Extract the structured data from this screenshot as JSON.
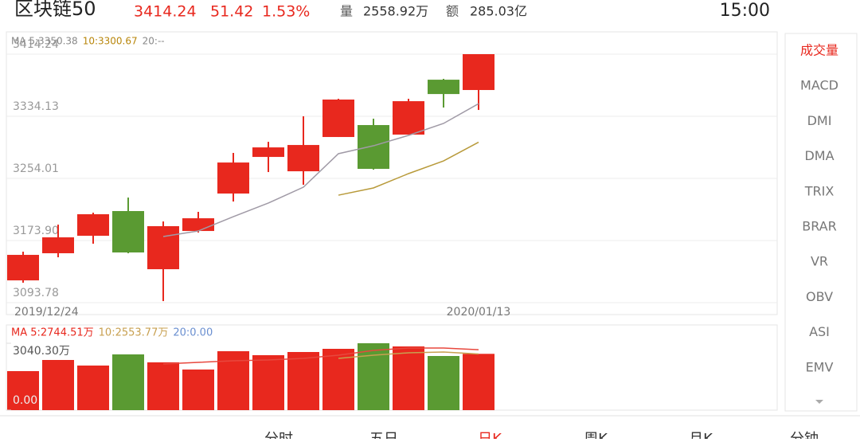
{
  "header": {
    "name": "区块链50",
    "price": "3414.24",
    "change": "51.42",
    "change_pct": "1.53%",
    "volume_label": "量",
    "volume": "2558.92万",
    "amount_label": "额",
    "amount": "285.03亿",
    "time": "15:00"
  },
  "price_chart": {
    "legend": [
      "MA 5:3350.38",
      "10:3300.67",
      "20:--"
    ],
    "legend_colors": [
      "#888888",
      "#b8860b",
      "#888888"
    ],
    "ylim": [
      3078.4,
      3443.0
    ],
    "yticks": [
      3414.24,
      3334.13,
      3254.01,
      {
        "value": 3173.9,
        "label": "3173.90"
      },
      3093.78
    ],
    "date_labels": [
      "2019/12/24",
      "2020/01/13"
    ],
    "up_color": "#e8281e",
    "down_color": "#5a9a32",
    "candles": [
      {
        "open": 3122.5,
        "close": 3155.4,
        "high": 3159.5,
        "low": 3119.5
      },
      {
        "open": 3157.5,
        "close": 3178.0,
        "high": 3194.4,
        "low": 3152.3
      },
      {
        "open": 3180.0,
        "close": 3207.8,
        "high": 3209.8,
        "low": 3169.8
      },
      {
        "open": 3211.9,
        "close": 3158.5,
        "high": 3229.3,
        "low": 3157.5
      },
      {
        "open": 3136.9,
        "close": 3192.4,
        "high": 3198.5,
        "low": 3095.8
      },
      {
        "open": 3186.2,
        "close": 3202.6,
        "high": 3210.9,
        "low": 3184.2
      },
      {
        "open": 3234.5,
        "close": 3274.5,
        "high": 3286.9,
        "low": 3224.2
      },
      {
        "open": 3281.7,
        "close": 3294.0,
        "high": 3301.2,
        "low": 3262.2
      },
      {
        "open": 3263.2,
        "close": 3297.1,
        "high": 3334.1,
        "low": 3245.8
      },
      {
        "open": 3307.4,
        "close": 3355.7,
        "high": 3356.7,
        "low": 3307.4
      },
      {
        "open": 3322.8,
        "close": 3266.3,
        "high": 3331.0,
        "low": 3265.3
      },
      {
        "open": 3310.5,
        "close": 3353.6,
        "high": 3356.7,
        "low": 3310.5
      },
      {
        "open": 3381.3,
        "close": 3362.8,
        "high": 3382.4,
        "low": 3345.4
      },
      {
        "open": 3368.0,
        "close": 3414.24,
        "high": 3414.24,
        "low": 3342.3
      }
    ],
    "ma5": [
      null,
      null,
      null,
      null,
      3179.0,
      3186.2,
      3204.7,
      3222.2,
      3242.7,
      3285.9,
      3296.1,
      3309.5,
      3324.9,
      3350.38
    ],
    "ma10": [
      null,
      null,
      null,
      null,
      null,
      null,
      null,
      null,
      null,
      3232.4,
      3241.7,
      3260.2,
      3276.6,
      3300.67
    ],
    "ma_colors": [
      "#a09aa6",
      "#b89a3a"
    ]
  },
  "volume_chart": {
    "legend": [
      "MA 5:2744.51万",
      "10:2553.77万",
      "20:0.00"
    ],
    "legend_colors": [
      "#e8281e",
      "#c8a050",
      "#6a8fd0"
    ],
    "ylim": [
      0,
      3873
    ],
    "yticks": [
      {
        "value": 3040.3,
        "label": "3040.30万"
      },
      {
        "value": 0,
        "label": "0.00"
      }
    ],
    "values": [
      1773.5,
      2280.2,
      2026.9,
      2533.6,
      2171.6,
      1845.9,
      2678.4,
      2497.4,
      2642.2,
      2786.9,
      3040.3,
      2895.5,
      2461.2,
      2558.92
    ],
    "ma5": [
      null,
      null,
      null,
      null,
      2099,
      2172,
      2244,
      2280,
      2352,
      2497,
      2714,
      2823,
      2823,
      2744.51
    ],
    "ma10": [
      null,
      null,
      null,
      null,
      null,
      null,
      null,
      null,
      null,
      2352,
      2497,
      2606,
      2642,
      2553.77
    ],
    "ma_colors": [
      "#e8483e",
      "#c8a050"
    ]
  },
  "indicators": [
    "成交量",
    "MACD",
    "DMI",
    "DMA",
    "TRIX",
    "BRAR",
    "VR",
    "OBV",
    "ASI",
    "EMV"
  ],
  "tabs": [
    "分时",
    "五日",
    "日K",
    "周K",
    "月K",
    "分钟"
  ]
}
